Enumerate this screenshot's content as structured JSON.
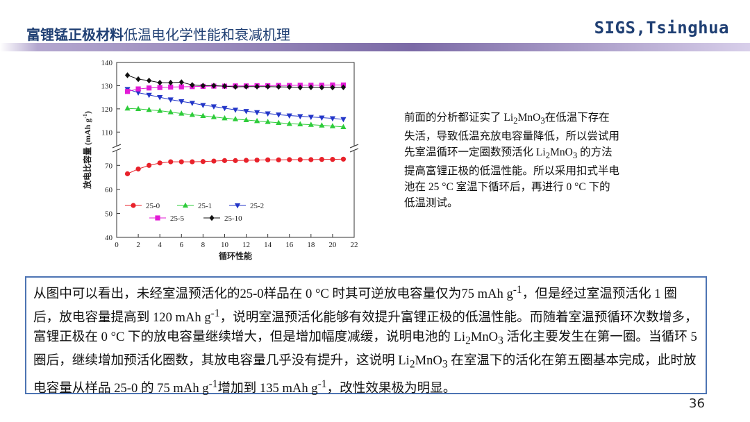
{
  "header": {
    "title_bold": "富锂锰正极材料",
    "title_rest": "低温电化学性能和衰减机理",
    "brand": "SIGS,Tsinghua"
  },
  "side_note": {
    "parts": [
      "前面的分析都证实了 Li",
      "2",
      "MnO",
      "3",
      "在低温下存在失活，导致低温充放电容量降低，所以尝试用先室温循环一定圈数预活化 Li",
      "2",
      "MnO",
      "3",
      " 的方法提高富锂正极的低温性能。所以采用扣式半电池在 25 °C 室温下循环后，再进行 0 °C 下的低温测试。"
    ]
  },
  "box_text": {
    "parts": [
      "从图中可以看出，未经室温预活化的25-0样品在 0 °C 时其可逆放电容量仅为75 mAh g",
      "-1",
      "，但是经过室温预活化 1 圈后，放电容量提高到 120 mAh g",
      "-1",
      "，说明室温预活化能够有效提升富锂正极的低温性能。而随着室温预循环次数增多，富锂正极在 0 °C 下的放电容量继续增大，但是增加幅度减缓，说明电池的 Li",
      "2",
      "MnO",
      "3",
      " 活化主要发生在第一圈。当循环 5 圈后，继续增加预活化圈数，其放电容量几乎没有提升，这说明 Li",
      "2",
      "MnO",
      "3",
      " 在室温下的活化在第五圈基本完成，此时放电容量从样品 25-0 的 75 mAh g",
      "-1",
      "增加到 135 mAh g",
      "-1",
      "，改性效果极为明显。"
    ]
  },
  "page_number": "36",
  "chart_data": {
    "type": "line",
    "xlabel": "循环性能",
    "ylabel": "放电比容量 (mAh g",
    "ylabel_sup": "-1",
    "ylabel_end": ")",
    "x_ticks": [
      "0",
      "2",
      "4",
      "6",
      "8",
      "10",
      "12",
      "14",
      "16",
      "18",
      "20",
      "22"
    ],
    "y_ticks_upper": [
      "110",
      "120",
      "130",
      "140"
    ],
    "y_ticks_lower": [
      "40",
      "50",
      "60",
      "70"
    ],
    "xlim": [
      0,
      22
    ],
    "ylim_upper": [
      105,
      140
    ],
    "ylim_lower": [
      40,
      75
    ],
    "axis_break": true,
    "legend_position": "bottom-left",
    "x": [
      1,
      2,
      3,
      4,
      5,
      6,
      7,
      8,
      9,
      10,
      11,
      12,
      13,
      14,
      15,
      16,
      17,
      18,
      19,
      20,
      21
    ],
    "series": [
      {
        "name": "25-0",
        "color": "#e8212a",
        "marker": "circle",
        "values": [
          66.5,
          68.5,
          70,
          71,
          71.5,
          71.5,
          71.5,
          71.6,
          71.8,
          72,
          72,
          72.1,
          72.2,
          72.3,
          72.3,
          72.4,
          72.4,
          72.4,
          72.5,
          72.5,
          72.6
        ]
      },
      {
        "name": "25-1",
        "color": "#2ecc3a",
        "marker": "triangle-up",
        "values": [
          120.2,
          120,
          119.6,
          119.2,
          118.6,
          118,
          117.5,
          117,
          116.5,
          116,
          115.6,
          115.2,
          114.8,
          114.4,
          114,
          113.6,
          113.4,
          113.2,
          112.9,
          112.6,
          112.2
        ]
      },
      {
        "name": "25-2",
        "color": "#2336c8",
        "marker": "triangle-down",
        "values": [
          128.5,
          127,
          126,
          125,
          124,
          123.2,
          122.5,
          121.6,
          121,
          120.3,
          119.6,
          119,
          118.5,
          118,
          117.5,
          117.1,
          116.8,
          116.5,
          116.2,
          115.9,
          115.5
        ]
      },
      {
        "name": "25-5",
        "color": "#e31bd6",
        "marker": "square",
        "values": [
          127.5,
          128.6,
          129,
          129.2,
          129.4,
          129.5,
          129.6,
          129.7,
          129.8,
          129.8,
          129.9,
          129.9,
          130,
          130,
          130.1,
          130.1,
          130.2,
          130.2,
          130.2,
          130.3,
          130.3
        ]
      },
      {
        "name": "25-10",
        "color": "#111111",
        "marker": "diamond",
        "values": [
          134.5,
          132.8,
          132.2,
          131.3,
          131.3,
          131.5,
          130.3,
          130,
          130,
          129.8,
          129.5,
          129.6,
          129.6,
          129.6,
          129.5,
          129.4,
          129.2,
          129.3,
          129.2,
          129.2,
          129.3
        ]
      }
    ]
  }
}
